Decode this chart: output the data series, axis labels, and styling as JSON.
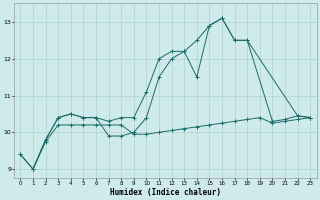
{
  "xlabel": "Humidex (Indice chaleur)",
  "xlim": [
    -0.5,
    23.5
  ],
  "ylim": [
    8.75,
    13.5
  ],
  "yticks": [
    9,
    10,
    11,
    12,
    13
  ],
  "xticks": [
    0,
    1,
    2,
    3,
    4,
    5,
    6,
    7,
    8,
    9,
    10,
    11,
    12,
    13,
    14,
    15,
    16,
    17,
    18,
    19,
    20,
    21,
    22,
    23
  ],
  "bg_color": "#ceeaea",
  "grid_color": "#aacccc",
  "line_color": "#1a6b6b",
  "series1_x": [
    0,
    1,
    2,
    3,
    4,
    5,
    6,
    7,
    8,
    9,
    10,
    11,
    12,
    13,
    14,
    15,
    16,
    17,
    18,
    22,
    23
  ],
  "series1_y": [
    9.4,
    9.0,
    9.8,
    10.4,
    10.5,
    10.4,
    10.4,
    10.3,
    10.4,
    10.4,
    11.1,
    12.0,
    12.2,
    12.2,
    12.5,
    12.9,
    13.1,
    12.5,
    12.5,
    10.45,
    10.4
  ],
  "series2_x": [
    1,
    2,
    3,
    4,
    5,
    6,
    7,
    8,
    9,
    10,
    11,
    12,
    13,
    14,
    15,
    16,
    17,
    18,
    20,
    21,
    22,
    23
  ],
  "series2_y": [
    9.0,
    9.8,
    10.4,
    10.5,
    10.4,
    10.4,
    9.9,
    9.9,
    10.0,
    10.4,
    11.5,
    12.0,
    12.2,
    11.5,
    12.9,
    13.1,
    12.5,
    12.5,
    10.3,
    10.35,
    10.45,
    10.4
  ],
  "series3_x": [
    0,
    1,
    2,
    3,
    4,
    5,
    6,
    7,
    8,
    9,
    10,
    11,
    12,
    13,
    14,
    15,
    16,
    17,
    18,
    19,
    20,
    21,
    22,
    23
  ],
  "series3_y": [
    9.4,
    9.0,
    9.75,
    10.2,
    10.2,
    10.2,
    10.2,
    10.2,
    10.2,
    9.95,
    9.95,
    10.0,
    10.05,
    10.1,
    10.15,
    10.2,
    10.25,
    10.3,
    10.35,
    10.4,
    10.25,
    10.3,
    10.35,
    10.4
  ]
}
